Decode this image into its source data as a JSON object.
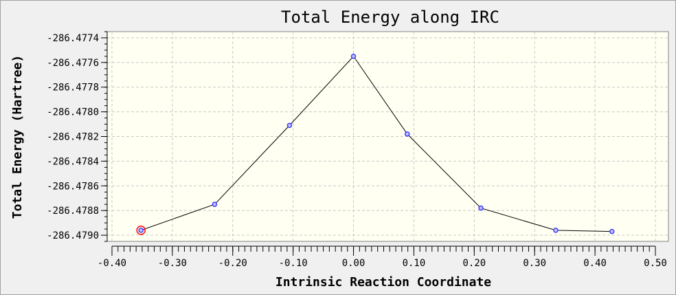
{
  "chart_data": {
    "type": "line",
    "title": "Total Energy along IRC",
    "xlabel": "Intrinsic Reaction Coordinate",
    "ylabel": "Total Energy (Hartree)",
    "xlim": [
      -0.4,
      0.5
    ],
    "ylim": [
      -286.47905,
      -286.47735
    ],
    "x_ticks": [
      -0.4,
      -0.3,
      -0.2,
      -0.1,
      0.0,
      0.1,
      0.2,
      0.3,
      0.4,
      0.5
    ],
    "x_tick_labels": [
      "-0.40",
      "-0.30",
      "-0.20",
      "-0.10",
      "0.00",
      "0.10",
      "0.20",
      "0.30",
      "0.40",
      "0.50"
    ],
    "y_ticks": [
      -286.4774,
      -286.4776,
      -286.4778,
      -286.478,
      -286.4782,
      -286.4784,
      -286.4786,
      -286.4788,
      -286.479
    ],
    "y_tick_labels": [
      "-286.4774",
      "-286.4776",
      "-286.4778",
      "-286.4780",
      "-286.4782",
      "-286.4784",
      "-286.4786",
      "-286.4788",
      "-286.4790"
    ],
    "grid": true,
    "series": [
      {
        "x": [
          -0.352,
          -0.23,
          -0.106,
          0.0,
          0.089,
          0.211,
          0.335,
          0.428
        ],
        "y": [
          -286.47896,
          -286.47875,
          -286.47811,
          -286.47755,
          -286.47818,
          -286.47878,
          -286.47896,
          -286.47897
        ],
        "color": "#000000",
        "marker_color": "#3a3aff",
        "highlighted_point": 0,
        "highlight_color": "#ff0000"
      }
    ]
  },
  "colors": {
    "window_bg": "#f0f0f0",
    "plot_bg": "#fffff2",
    "grid": "#c8c8c8"
  }
}
